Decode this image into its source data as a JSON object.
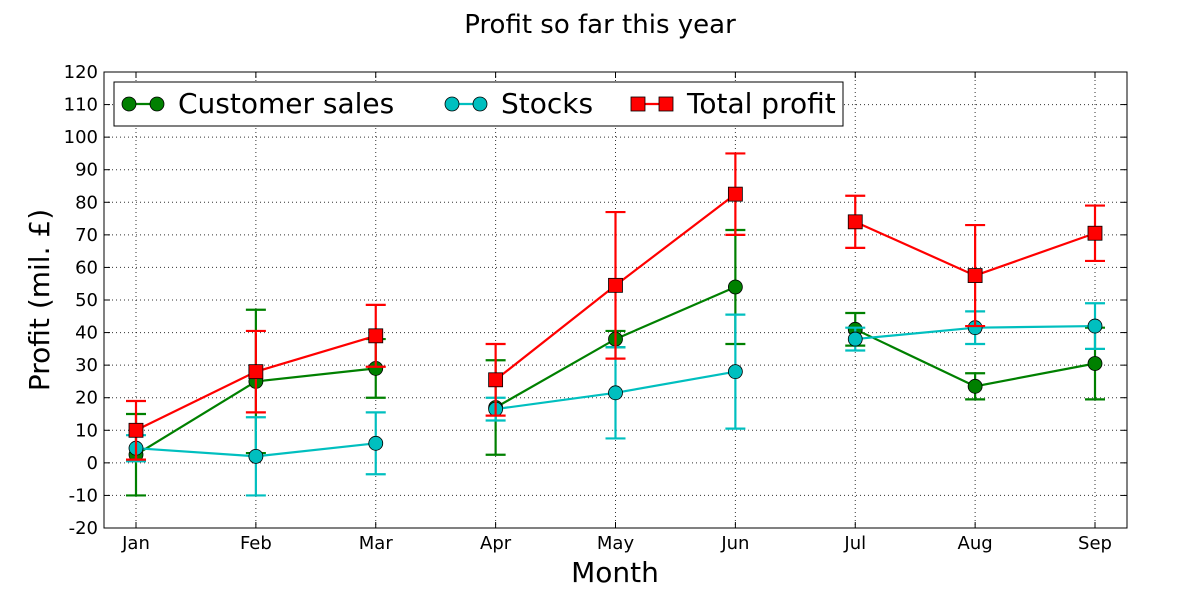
{
  "chart_data": {
    "type": "line",
    "title": "Profit so far this year",
    "xlabel": "Month",
    "ylabel": "Profit (mil. £)",
    "categories": [
      "Jan",
      "Feb",
      "Mar",
      "Apr",
      "May",
      "Jun",
      "Jul",
      "Aug",
      "Sep"
    ],
    "ylim": [
      -20,
      120
    ],
    "yticks": [
      -20,
      -10,
      0,
      10,
      20,
      30,
      40,
      50,
      60,
      70,
      80,
      90,
      100,
      110,
      120
    ],
    "grid": true,
    "legend_position": "top-left",
    "series": [
      {
        "name": "Customer sales",
        "color": "#008000",
        "marker": "circle",
        "values": [
          2.5,
          25,
          29,
          17,
          38,
          54,
          41,
          23.5,
          30.5
        ],
        "errors": [
          12.5,
          22,
          9,
          14.5,
          2.5,
          17.5,
          5,
          4,
          11
        ]
      },
      {
        "name": "Stocks",
        "color": "#00BFBF",
        "marker": "circle",
        "values": [
          4.5,
          2,
          6,
          16.5,
          21.5,
          28,
          38,
          41.5,
          42
        ],
        "errors": [
          4,
          12,
          9.5,
          3.5,
          14,
          17.5,
          3.5,
          5,
          7
        ]
      },
      {
        "name": "Total profit",
        "color": "#FF0000",
        "marker": "square",
        "values": [
          10,
          28,
          39,
          25.5,
          54.5,
          82.5,
          74,
          57.5,
          70.5
        ],
        "errors": [
          9,
          12.5,
          9.5,
          11,
          22.5,
          12.5,
          8,
          15.5,
          8.5
        ]
      }
    ],
    "segments": [
      [
        0,
        1,
        2
      ],
      [
        3,
        4,
        5
      ],
      [
        6,
        7,
        8
      ]
    ]
  }
}
